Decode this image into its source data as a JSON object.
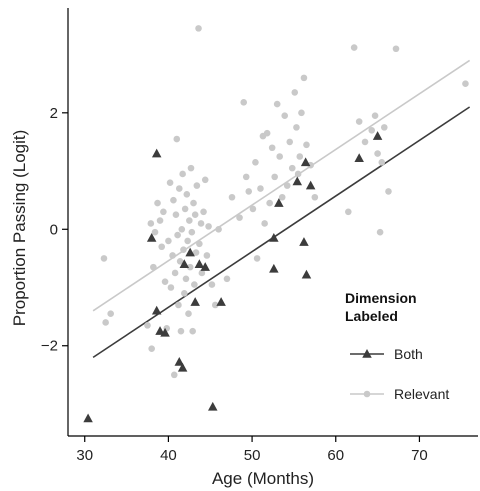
{
  "chart_data": {
    "type": "scatter",
    "xlabel": "Age (Months)",
    "ylabel": "Proportion Passing (Logit)",
    "xlim": [
      28,
      77
    ],
    "ylim": [
      -3.55,
      3.8
    ],
    "x_ticks": [
      30,
      40,
      50,
      60,
      70
    ],
    "x_tick_labels": [
      "30",
      "40",
      "50",
      "60",
      "70"
    ],
    "y_ticks": [
      -2,
      0,
      2
    ],
    "y_tick_labels": [
      "−2",
      "0",
      "2"
    ],
    "grid": false,
    "legend": {
      "title_line1": "Dimension",
      "title_line2": "Labeled",
      "placement": "right"
    },
    "series": [
      {
        "name": "Both",
        "marker": "triangle",
        "color": "#3c3c3c",
        "trend": {
          "x": [
            31,
            76
          ],
          "y": [
            -2.2,
            2.1
          ]
        },
        "points": [
          [
            30.4,
            -3.25
          ],
          [
            38.0,
            -0.15
          ],
          [
            38.6,
            1.3
          ],
          [
            38.6,
            -1.4
          ],
          [
            39.0,
            -1.75
          ],
          [
            39.6,
            -1.78
          ],
          [
            41.3,
            -2.28
          ],
          [
            41.7,
            -2.38
          ],
          [
            41.9,
            -0.6
          ],
          [
            42.6,
            -0.4
          ],
          [
            43.2,
            -1.25
          ],
          [
            43.7,
            -0.6
          ],
          [
            44.4,
            -0.65
          ],
          [
            45.3,
            -3.05
          ],
          [
            46.3,
            -1.25
          ],
          [
            52.6,
            -0.15
          ],
          [
            52.6,
            -0.68
          ],
          [
            53.2,
            0.45
          ],
          [
            55.4,
            0.82
          ],
          [
            56.2,
            -0.22
          ],
          [
            56.4,
            1.15
          ],
          [
            56.5,
            -0.78
          ],
          [
            57.0,
            0.75
          ],
          [
            62.8,
            1.22
          ],
          [
            65.0,
            1.6
          ]
        ]
      },
      {
        "name": "Relevant",
        "marker": "circle",
        "color": "#c9c9c9",
        "trend": {
          "x": [
            31,
            76
          ],
          "y": [
            -1.4,
            2.9
          ]
        },
        "points": [
          [
            32.3,
            -0.5
          ],
          [
            32.5,
            -1.6
          ],
          [
            33.1,
            -1.45
          ],
          [
            37.5,
            -1.65
          ],
          [
            38.0,
            -2.05
          ],
          [
            37.9,
            0.1
          ],
          [
            38.2,
            -0.65
          ],
          [
            38.4,
            -0.05
          ],
          [
            38.7,
            0.45
          ],
          [
            39.0,
            0.15
          ],
          [
            39.2,
            -0.3
          ],
          [
            39.4,
            0.3
          ],
          [
            39.6,
            -0.9
          ],
          [
            39.8,
            -1.7
          ],
          [
            40.0,
            -0.2
          ],
          [
            40.2,
            0.8
          ],
          [
            40.3,
            -1.0
          ],
          [
            40.5,
            -0.45
          ],
          [
            40.6,
            0.5
          ],
          [
            40.7,
            -2.5
          ],
          [
            40.8,
            -0.75
          ],
          [
            40.9,
            0.25
          ],
          [
            41.0,
            1.55
          ],
          [
            41.1,
            -0.1
          ],
          [
            41.2,
            -1.3
          ],
          [
            41.3,
            0.7
          ],
          [
            41.4,
            -0.55
          ],
          [
            41.5,
            -1.75
          ],
          [
            41.6,
            0.0
          ],
          [
            41.7,
            0.95
          ],
          [
            41.8,
            -0.35
          ],
          [
            41.9,
            -1.1
          ],
          [
            42.0,
            0.35
          ],
          [
            42.1,
            -0.85
          ],
          [
            42.2,
            0.6
          ],
          [
            42.3,
            -0.2
          ],
          [
            42.4,
            -1.45
          ],
          [
            42.5,
            0.15
          ],
          [
            42.6,
            -0.65
          ],
          [
            42.7,
            1.05
          ],
          [
            42.8,
            -0.05
          ],
          [
            42.9,
            -1.75
          ],
          [
            43.0,
            0.45
          ],
          [
            43.1,
            -0.95
          ],
          [
            43.2,
            0.25
          ],
          [
            43.3,
            -0.4
          ],
          [
            43.4,
            0.75
          ],
          [
            43.6,
            3.45
          ],
          [
            43.7,
            -0.25
          ],
          [
            43.9,
            0.1
          ],
          [
            44.0,
            -0.75
          ],
          [
            44.2,
            0.3
          ],
          [
            44.4,
            0.85
          ],
          [
            44.6,
            -0.45
          ],
          [
            44.8,
            0.05
          ],
          [
            45.2,
            -0.95
          ],
          [
            45.6,
            -1.3
          ],
          [
            46.0,
            0.0
          ],
          [
            47.0,
            -0.85
          ],
          [
            47.6,
            0.55
          ],
          [
            48.5,
            0.2
          ],
          [
            49.0,
            2.18
          ],
          [
            49.3,
            0.9
          ],
          [
            49.6,
            0.65
          ],
          [
            50.1,
            0.35
          ],
          [
            50.4,
            1.15
          ],
          [
            50.6,
            -0.5
          ],
          [
            51.0,
            0.7
          ],
          [
            51.3,
            1.6
          ],
          [
            51.5,
            0.1
          ],
          [
            51.8,
            1.65
          ],
          [
            52.1,
            0.45
          ],
          [
            52.4,
            1.4
          ],
          [
            52.7,
            0.9
          ],
          [
            53.0,
            2.15
          ],
          [
            53.3,
            1.25
          ],
          [
            53.6,
            0.55
          ],
          [
            53.9,
            1.95
          ],
          [
            54.2,
            0.75
          ],
          [
            54.5,
            1.5
          ],
          [
            54.8,
            1.05
          ],
          [
            55.1,
            2.35
          ],
          [
            55.3,
            1.75
          ],
          [
            55.5,
            0.95
          ],
          [
            55.7,
            1.25
          ],
          [
            55.9,
            2.0
          ],
          [
            56.2,
            2.6
          ],
          [
            56.5,
            1.45
          ],
          [
            57.0,
            1.1
          ],
          [
            57.5,
            0.55
          ],
          [
            61.5,
            0.3
          ],
          [
            62.2,
            3.12
          ],
          [
            62.8,
            1.85
          ],
          [
            63.5,
            1.5
          ],
          [
            64.3,
            1.7
          ],
          [
            64.7,
            1.95
          ],
          [
            65.0,
            1.3
          ],
          [
            65.3,
            -0.05
          ],
          [
            65.5,
            1.15
          ],
          [
            65.8,
            1.75
          ],
          [
            66.3,
            0.65
          ],
          [
            67.2,
            3.1
          ],
          [
            75.5,
            2.5
          ]
        ]
      }
    ]
  }
}
